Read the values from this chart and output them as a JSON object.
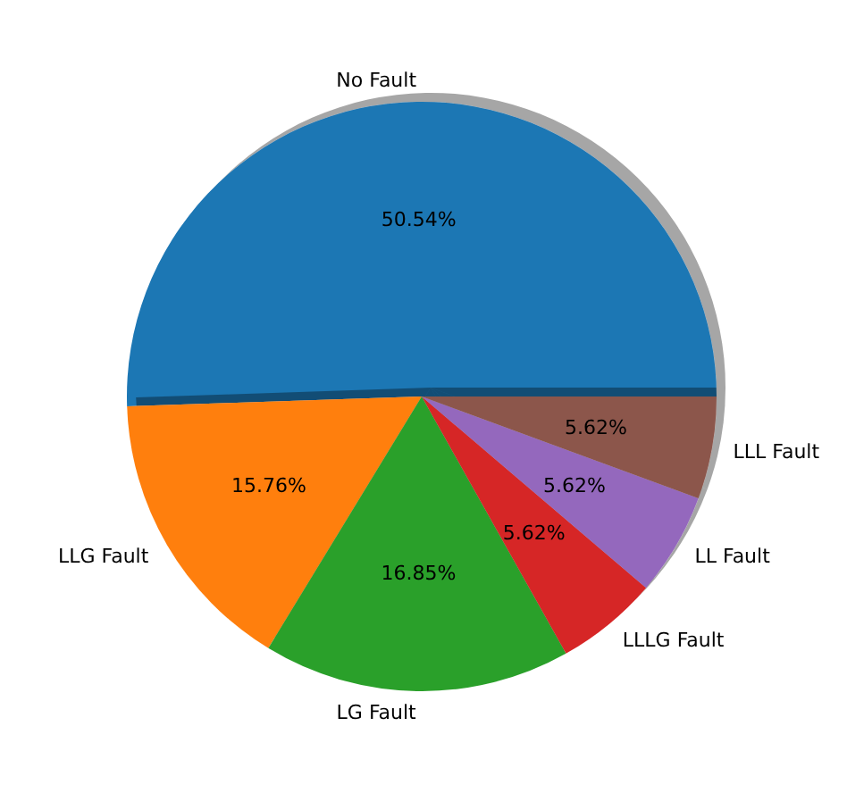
{
  "chart_data": {
    "type": "pie",
    "categories": [
      "No Fault",
      "LLG Fault",
      "LG Fault",
      "LLLG Fault",
      "LL Fault",
      "LLL Fault"
    ],
    "values": [
      50.54,
      15.76,
      16.85,
      5.62,
      5.62,
      5.62
    ],
    "value_labels": [
      "50.54%",
      "15.76%",
      "16.85%",
      "5.62%",
      "5.62%",
      "5.62%"
    ],
    "colors": [
      "#1f77b4",
      "#ff7f0e",
      "#2ca02c",
      "#d62728",
      "#9467bd",
      "#8c564b"
    ],
    "legend": false
  }
}
